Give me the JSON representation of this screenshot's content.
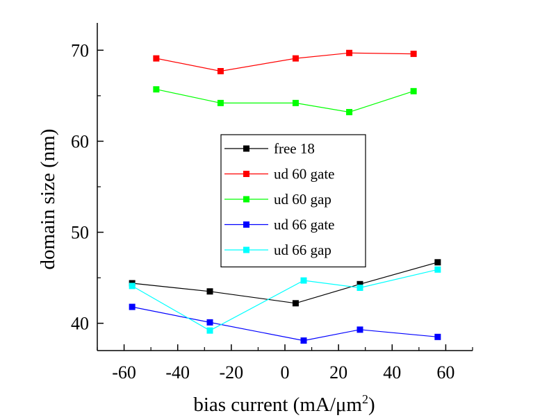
{
  "chart_data": {
    "type": "line",
    "title": "",
    "xlabel": "bias current (mA/μm",
    "xlabel_superscript": "2",
    "xlabel_suffix": ")",
    "ylabel": "domain size (nm)",
    "xlim": [
      -70,
      70
    ],
    "ylim": [
      37,
      73
    ],
    "xticks": [
      -60,
      -40,
      -20,
      0,
      20,
      40,
      60
    ],
    "xtick_labels": [
      "-60",
      "-40",
      "-20",
      "0",
      "20",
      "40",
      "60"
    ],
    "yticks": [
      40,
      50,
      60,
      70
    ],
    "ytick_labels": [
      "40",
      "50",
      "60",
      "70"
    ],
    "grid": false,
    "legend_position": "center",
    "series": [
      {
        "name": "free 18",
        "color": "#000000",
        "marker": "square",
        "x": [
          -57,
          -28,
          4,
          28,
          57
        ],
        "y": [
          44.4,
          43.5,
          42.2,
          44.3,
          46.7
        ]
      },
      {
        "name": "ud 60 gate",
        "color": "#ff0000",
        "marker": "square",
        "x": [
          -48,
          -24,
          4,
          24,
          48
        ],
        "y": [
          69.1,
          67.7,
          69.1,
          69.7,
          69.6
        ]
      },
      {
        "name": "ud 60 gap",
        "color": "#00ff00",
        "marker": "square",
        "x": [
          -48,
          -24,
          4,
          24,
          48
        ],
        "y": [
          65.7,
          64.2,
          64.2,
          63.2,
          65.5
        ]
      },
      {
        "name": "ud 66 gate",
        "color": "#0000ff",
        "marker": "square",
        "x": [
          -57,
          -28,
          7,
          28,
          57
        ],
        "y": [
          41.8,
          40.1,
          38.1,
          39.3,
          38.5
        ]
      },
      {
        "name": "ud 66 gap",
        "color": "#00ffff",
        "marker": "square",
        "x": [
          -57,
          -28,
          7,
          28,
          57
        ],
        "y": [
          44.1,
          39.2,
          44.7,
          43.9,
          45.9
        ]
      }
    ]
  }
}
